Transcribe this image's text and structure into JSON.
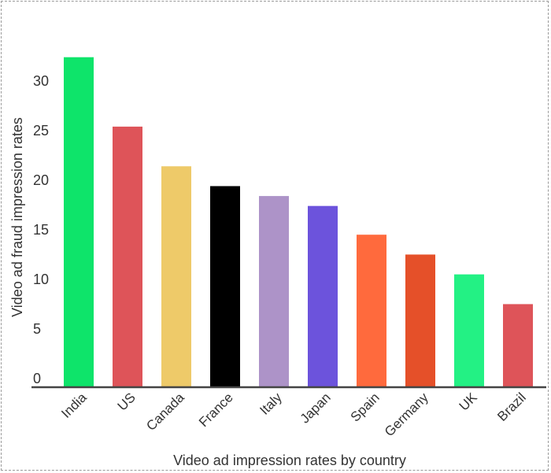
{
  "chart_data": {
    "type": "bar",
    "title": "",
    "xlabel": "Video ad impression rates by country",
    "ylabel": "Video ad fraud impression rates",
    "categories": [
      "India",
      "US",
      "Canada",
      "France",
      "Italy",
      "Japan",
      "Spain",
      "Germany",
      "UK",
      "Brazil"
    ],
    "values": [
      33.2,
      26.2,
      22.2,
      20.2,
      19.2,
      18.2,
      15.3,
      13.3,
      11.3,
      8.3
    ],
    "colors": [
      "#0ee46a",
      "#de5459",
      "#eeca69",
      "#000000",
      "#ad93c8",
      "#6c53dc",
      "#ff6a3d",
      "#e55029",
      "#23f184",
      "#de5459"
    ],
    "yticks": [
      0,
      5,
      10,
      15,
      20,
      25,
      30
    ],
    "ylim": [
      0,
      34
    ],
    "grid": false,
    "legend": "none"
  }
}
